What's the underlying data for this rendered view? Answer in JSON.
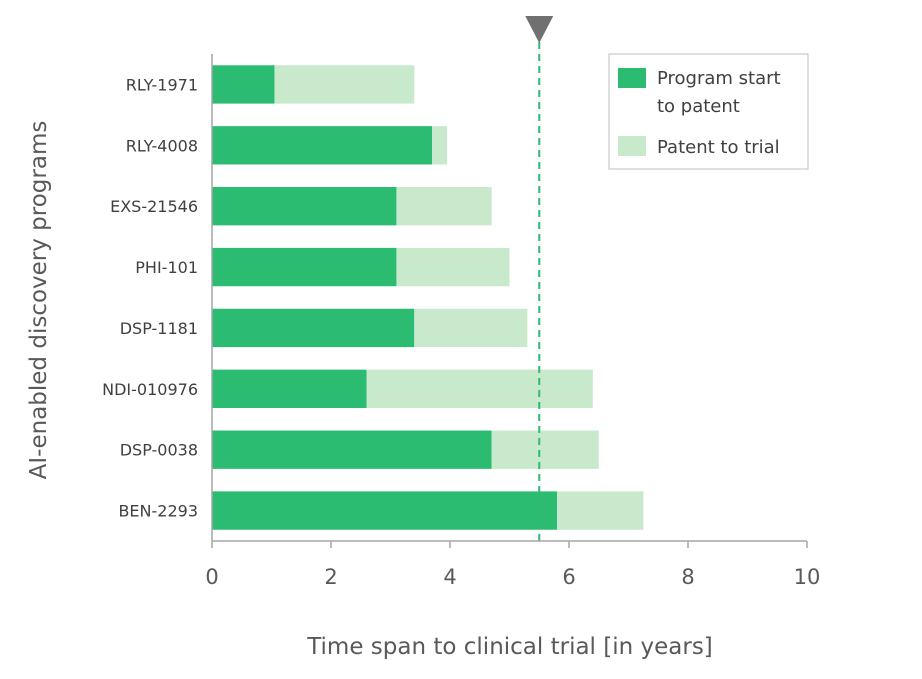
{
  "chart_data": {
    "type": "bar",
    "orientation": "horizontal",
    "stacked": true,
    "categories": [
      "RLY-1971",
      "RLY-4008",
      "EXS-21546",
      "PHI-101",
      "DSP-1181",
      "NDI-010976",
      "DSP-0038",
      "BEN-2293"
    ],
    "series": [
      {
        "name": "Program start to patent",
        "values": [
          1.05,
          3.7,
          3.1,
          3.1,
          3.4,
          2.6,
          4.7,
          5.8
        ]
      },
      {
        "name": "Patent to trial",
        "values": [
          2.35,
          0.25,
          1.6,
          1.9,
          1.9,
          3.8,
          1.8,
          1.45
        ]
      }
    ],
    "colors": [
      "#2bbc72",
      "#c9e9cc"
    ],
    "xlabel": "Time span to clinical trial [in years]",
    "ylabel": "AI-enabled discovery programs",
    "xlim": [
      0,
      10
    ],
    "xticks": [
      0,
      2,
      4,
      6,
      8,
      10
    ],
    "reference_line": {
      "x": 5.5,
      "color": "#2bbc72",
      "style": "dashed",
      "marker": "triangle-down"
    },
    "legend_position": "top-right",
    "legend_labels": [
      [
        "Program start",
        "to patent"
      ],
      [
        "Patent to trial"
      ]
    ],
    "grid": false
  }
}
